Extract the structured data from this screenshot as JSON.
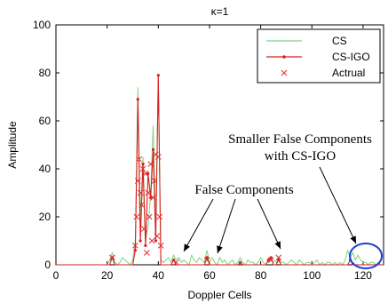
{
  "chart_data": {
    "type": "line",
    "title": "κ=1",
    "xlabel": "Doppler Cells",
    "ylabel": "Amplitude",
    "xlim": [
      0,
      128
    ],
    "ylim": [
      0,
      100
    ],
    "xticks": [
      0,
      20,
      40,
      60,
      80,
      100,
      120
    ],
    "yticks": [
      0,
      20,
      40,
      60,
      80,
      100
    ],
    "grid": false,
    "legend_position": "top-right",
    "series": [
      {
        "name": "CS",
        "color": "#7fd37f",
        "style": "line",
        "x": [
          0,
          20,
          21,
          22,
          23,
          24,
          25,
          26,
          27,
          28,
          29,
          30,
          31,
          32,
          33,
          34,
          35,
          36,
          37,
          38,
          39,
          40,
          41,
          42,
          43,
          44,
          45,
          46,
          47,
          48,
          49,
          50,
          51,
          52,
          53,
          54,
          55,
          56,
          57,
          58,
          59,
          60,
          61,
          62,
          63,
          64,
          65,
          66,
          67,
          68,
          69,
          70,
          71,
          72,
          73,
          74,
          75,
          76,
          77,
          78,
          79,
          80,
          81,
          82,
          83,
          84,
          85,
          86,
          87,
          88,
          89,
          90,
          91,
          92,
          93,
          94,
          95,
          96,
          97,
          98,
          99,
          100,
          101,
          102,
          103,
          104,
          105,
          106,
          107,
          108,
          109,
          110,
          111,
          112,
          113,
          114,
          115,
          116,
          117,
          118,
          119,
          120,
          121,
          122,
          123,
          124,
          125,
          126,
          127,
          128
        ],
        "y": [
          0,
          0,
          2,
          5,
          1,
          0,
          1,
          3,
          2,
          1,
          0,
          2,
          10,
          74,
          18,
          45,
          10,
          16,
          30,
          58,
          16,
          78,
          2,
          1,
          2,
          3,
          1,
          4,
          2,
          3,
          1,
          2,
          1,
          0,
          4,
          2,
          1,
          3,
          2,
          1,
          6,
          1,
          3,
          1,
          0,
          3,
          1,
          2,
          0,
          1,
          2,
          0,
          1,
          3,
          1,
          0,
          2,
          1,
          1,
          0,
          1,
          3,
          1,
          0,
          2,
          3,
          2,
          1,
          2,
          1,
          1,
          0,
          1,
          2,
          1,
          0,
          2,
          1,
          0,
          1,
          1,
          0,
          1,
          2,
          0,
          1,
          0,
          1,
          1,
          0,
          1,
          0,
          1,
          0,
          2,
          6,
          3,
          5,
          2,
          4,
          2,
          1,
          1,
          0,
          1,
          1,
          0,
          1,
          0,
          0
        ]
      },
      {
        "name": "CS-IGO",
        "color": "#d62020",
        "style": "line-dot",
        "x": [
          0,
          20,
          21,
          22,
          23,
          24,
          25,
          26,
          27,
          28,
          29,
          30,
          31,
          32,
          33,
          34,
          35,
          36,
          37,
          38,
          39,
          40,
          41,
          42,
          43,
          44,
          45,
          46,
          47,
          48,
          49,
          50,
          51,
          52,
          53,
          54,
          55,
          56,
          57,
          58,
          59,
          60,
          61,
          62,
          63,
          64,
          65,
          66,
          67,
          68,
          69,
          70,
          71,
          72,
          73,
          74,
          75,
          76,
          77,
          78,
          79,
          80,
          81,
          82,
          83,
          84,
          85,
          86,
          87,
          88,
          89,
          90,
          91,
          92,
          93,
          94,
          95,
          96,
          97,
          98,
          99,
          100,
          101,
          102,
          103,
          104,
          105,
          106,
          107,
          108,
          109,
          110,
          111,
          112,
          113,
          114,
          115,
          116,
          117,
          118,
          119,
          120,
          121,
          122,
          123,
          124,
          125,
          126,
          127,
          128
        ],
        "y": [
          0,
          0,
          0,
          3,
          0,
          0,
          0,
          0,
          0,
          0,
          0,
          0,
          6,
          69,
          10,
          42,
          8,
          38,
          28,
          48,
          10,
          79,
          0,
          0,
          0,
          0,
          0,
          2,
          0,
          0,
          0,
          0,
          0,
          0,
          0,
          0,
          0,
          0,
          0,
          0,
          3,
          0,
          0,
          0,
          0,
          0,
          0,
          0,
          0,
          0,
          0,
          0,
          0,
          1,
          0,
          0,
          0,
          0,
          0,
          0,
          0,
          0,
          0,
          0,
          2,
          3,
          0,
          0,
          2,
          0,
          0,
          0,
          0,
          0,
          0,
          0,
          0,
          0,
          0,
          0,
          0,
          0,
          0,
          0,
          0,
          0,
          0,
          0,
          0,
          0,
          0,
          0,
          0,
          0,
          0,
          0,
          2,
          0,
          0,
          0,
          0,
          0,
          0,
          0,
          0,
          0,
          0,
          0,
          0,
          0
        ]
      },
      {
        "name": "Actrual",
        "color": "#e03030",
        "style": "marker-x",
        "x": [
          22,
          31,
          31.5,
          32,
          32.5,
          33,
          33.5,
          34,
          34.5,
          35,
          35.5,
          36,
          36.5,
          37,
          37.5,
          38,
          38.5,
          39,
          39.5,
          40,
          40.5,
          41,
          47,
          59,
          84,
          87
        ],
        "y": [
          3,
          8,
          20,
          35,
          44,
          30,
          25,
          40,
          15,
          38,
          5,
          30,
          20,
          42,
          10,
          28,
          35,
          46,
          12,
          45,
          20,
          8,
          1,
          2,
          2,
          3
        ]
      }
    ],
    "annotations": [
      {
        "text": "False Components"
      },
      {
        "text": "Smaller False Components"
      },
      {
        "text": "with CS-IGO"
      }
    ]
  }
}
